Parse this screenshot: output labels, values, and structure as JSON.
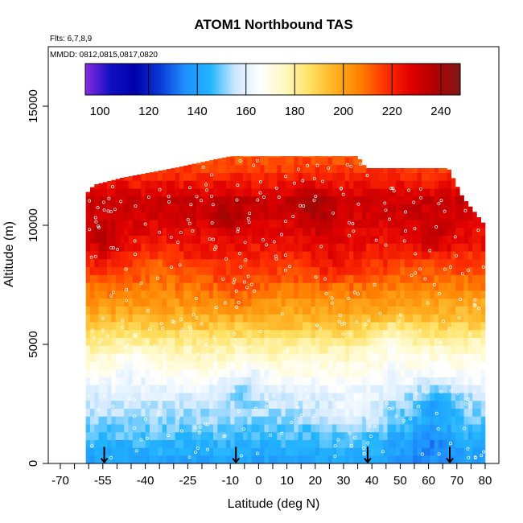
{
  "chart_data": {
    "type": "heatmap",
    "title": "ATOM1 Northbound TAS",
    "notes": {
      "flights": "Flts: 6,7,8,9",
      "dates": "MMDD: 0812,0815,0817,0820"
    },
    "xlabel": "Latitude (deg N)",
    "ylabel": "Altitude (m)",
    "xlim": [
      -70,
      80
    ],
    "ylim": [
      0,
      17500
    ],
    "x_ticks": [
      -70,
      -55,
      -40,
      -25,
      -10,
      0,
      10,
      20,
      30,
      40,
      50,
      60,
      70,
      80
    ],
    "x_minor_ticks": [
      -65,
      -60,
      -50,
      -45,
      -35,
      -30,
      -20,
      -15,
      -5,
      5,
      15,
      25,
      35,
      45,
      55,
      65,
      75
    ],
    "y_ticks": [
      0,
      5000,
      10000,
      15000
    ],
    "grid": false,
    "colorbar": {
      "min": 94,
      "max": 248,
      "ticks": [
        100,
        120,
        140,
        160,
        180,
        200,
        220,
        240
      ],
      "gridlines": [
        120,
        140,
        160,
        180,
        200,
        220,
        240
      ],
      "colors": [
        "#8a2be2",
        "#1010c0",
        "#0000aa",
        "#0a3ad6",
        "#1e90ff",
        "#22b4ff",
        "#cfe8ff",
        "#ffffff",
        "#fff8c0",
        "#ffe060",
        "#ffb020",
        "#ff8000",
        "#ff3000",
        "#e00000",
        "#b00000",
        "#801818"
      ],
      "placement": "top"
    },
    "lat_range": [
      -61,
      80
    ],
    "profile": {
      "altitude": [
        0,
        1000,
        2000,
        3000,
        4000,
        5000,
        6000,
        7000,
        8000,
        9000,
        10000,
        11000,
        12000,
        12900
      ],
      "tas": [
        140,
        146,
        153,
        160,
        170,
        180,
        195,
        205,
        215,
        222,
        228,
        232,
        220,
        212
      ]
    },
    "top_altitude": [
      {
        "lat": -61,
        "alt": 11300
      },
      {
        "lat": -58,
        "alt": 11700
      },
      {
        "lat": -48,
        "alt": 12000
      },
      {
        "lat": -30,
        "alt": 12400
      },
      {
        "lat": -10,
        "alt": 12900
      },
      {
        "lat": 35,
        "alt": 12900
      },
      {
        "lat": 38,
        "alt": 12400
      },
      {
        "lat": 67,
        "alt": 12400
      },
      {
        "lat": 72,
        "alt": 11200
      },
      {
        "lat": 80,
        "alt": 10000
      }
    ],
    "anomalies": [
      {
        "lat": -54,
        "alt": 9300,
        "dtas": 10
      },
      {
        "lat": -10,
        "alt": 10400,
        "dtas": 8
      },
      {
        "lat": 20,
        "alt": 10800,
        "dtas": 9
      },
      {
        "lat": 62,
        "alt": 9500,
        "dtas": 7
      },
      {
        "lat": 25,
        "alt": 8700,
        "dtas": 6
      },
      {
        "lat": -35,
        "alt": 8300,
        "dtas": -6
      },
      {
        "lat": -8,
        "alt": 7200,
        "dtas": 5
      },
      {
        "lat": 63,
        "alt": 2600,
        "dtas": -12
      },
      {
        "lat": -5,
        "alt": 3300,
        "dtas": -10
      },
      {
        "lat": 60,
        "alt": 1100,
        "dtas": -8
      },
      {
        "lat": 32,
        "alt": 1900,
        "dtas": 7
      },
      {
        "lat": -45,
        "alt": 4200,
        "dtas": -6
      },
      {
        "lat": 45,
        "alt": 5200,
        "dtas": -9
      }
    ],
    "profile_markers_lat": [
      -54.5,
      -8,
      38.5,
      67.5
    ],
    "legend": "none"
  }
}
